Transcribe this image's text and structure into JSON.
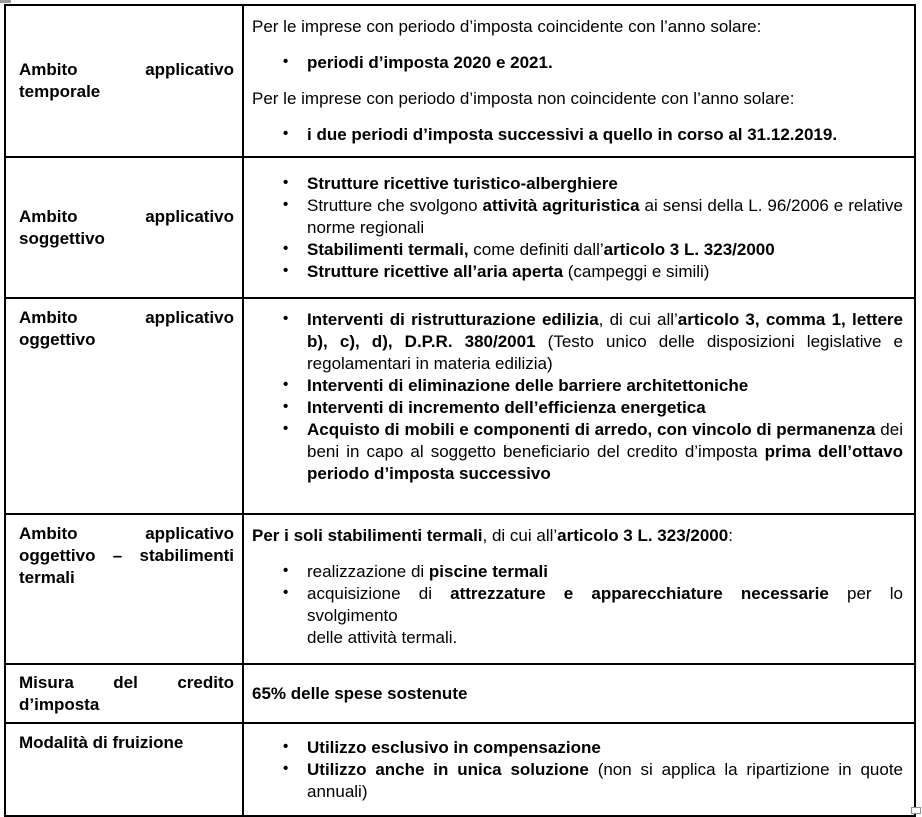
{
  "document": {
    "kind": "tax-credit-summary-table",
    "background_color": "#ffffff",
    "border_color": "#000000",
    "text_color": "#000000",
    "bullet_char": "•"
  },
  "table": {
    "rows": [
      {
        "label": "Ambito applicativo temporale",
        "blocks": [
          {
            "type": "p",
            "runs": [
              [
                "Per le imprese con periodo d’imposta coincidente con l’anno solare:",
                false
              ]
            ]
          },
          {
            "type": "bullets",
            "items": [
              [
                [
                  "periodi d’imposta 2020 e 2021.",
                  true
                ]
              ]
            ]
          },
          {
            "type": "p",
            "runs": [
              [
                "Per le imprese con periodo d’imposta non coincidente con l’anno solare:",
                false
              ]
            ]
          },
          {
            "type": "bullets",
            "items": [
              [
                [
                  "i due periodi d’imposta successivi a quello in corso al 31.12.2019.",
                  true
                ]
              ]
            ]
          }
        ]
      },
      {
        "label": "Ambito applicativo soggettivo",
        "blocks": [
          {
            "type": "bullets",
            "items": [
              [
                [
                  "Strutture ricettive turistico-alberghiere",
                  true
                ]
              ],
              [
                [
                  "Strutture che svolgono ",
                  false
                ],
                [
                  "attività agrituristica",
                  true
                ],
                [
                  " ai sensi della L.  96/2006 e relative norme regionali",
                  false
                ]
              ],
              [
                [
                  "Stabilimenti termali,",
                  true
                ],
                [
                  " come definiti dall’",
                  false
                ],
                [
                  "articolo 3 L. 323/2000",
                  true
                ]
              ],
              [
                [
                  "Strutture ricettive all’aria aperta",
                  true
                ],
                [
                  " (campeggi e simili)",
                  false
                ]
              ]
            ]
          }
        ]
      },
      {
        "label": "Ambito applicativo oggettivo",
        "blocks": [
          {
            "type": "bullets",
            "items": [
              [
                [
                  "Interventi di ristrutturazione edilizia",
                  true
                ],
                [
                  ", di cui all’",
                  false
                ],
                [
                  "articolo 3, comma 1, lettere b), c), d), D.P.R. 380/2001",
                  true
                ],
                [
                  " (Testo unico delle disposizioni legislative e regolamentari in materia edilizia)",
                  false
                ]
              ],
              [
                [
                  "Interventi di eliminazione delle barriere architettoniche",
                  true
                ]
              ],
              [
                [
                  "Interventi di incremento dell’efficienza energetica",
                  true
                ]
              ],
              [
                [
                  "Acquisto di mobili e componenti di arredo, con vincolo di permanenza",
                  true
                ],
                [
                  " dei beni in capo al soggetto beneficiario del credito d’imposta ",
                  false
                ],
                [
                  "prima dell’ottavo periodo d’imposta successivo",
                  true
                ]
              ]
            ]
          }
        ]
      },
      {
        "label": "Ambito applicativo oggettivo – stabilimenti termali",
        "blocks": [
          {
            "type": "p",
            "runs": [
              [
                "Per i soli stabilimenti termali",
                true
              ],
              [
                ", di cui all’",
                false
              ],
              [
                "articolo 3 L. 323/2000",
                true
              ],
              [
                ":",
                false
              ]
            ]
          },
          {
            "type": "bullets",
            "items": [
              [
                [
                  "realizzazione di ",
                  false
                ],
                [
                  "piscine termali",
                  true
                ]
              ],
              [
                [
                  "acquisizione di ",
                  false
                ],
                [
                  "attrezzature e apparecchiature necessarie",
                  true
                ],
                [
                  " per lo svolgimento\ndelle attività termali.",
                  false
                ]
              ]
            ]
          }
        ]
      },
      {
        "label": "Misura del credito d’imposta",
        "blocks": [
          {
            "type": "p",
            "runs": [
              [
                "65% delle spese sostenute",
                true
              ]
            ]
          }
        ]
      },
      {
        "label": "Modalità di fruizione",
        "blocks": [
          {
            "type": "bullets",
            "items": [
              [
                [
                  "Utilizzo esclusivo in compensazione",
                  true
                ]
              ],
              [
                [
                  "Utilizzo anche in unica soluzione",
                  true
                ],
                [
                  " (non si applica la ripartizione in quote annuali)",
                  false
                ]
              ]
            ]
          }
        ]
      }
    ]
  }
}
